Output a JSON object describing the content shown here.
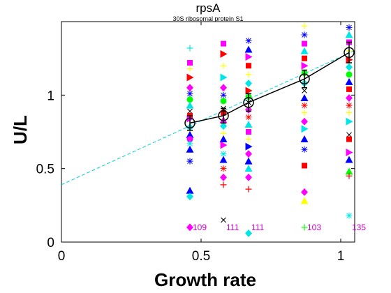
{
  "chart_data": {
    "type": "scatter",
    "title": "rpsA",
    "subtitle": "30S ribosomal protein S1",
    "xlabel": "Growth rate",
    "ylabel": "U/L",
    "xlim": [
      0,
      1.05
    ],
    "ylim": [
      0,
      1.5
    ],
    "xticks": [
      "0",
      "0.5",
      "1"
    ],
    "yticks": [
      "0",
      "0.5",
      "1"
    ],
    "grid": false,
    "fit_line": {
      "intercept": 0.39,
      "slope": 0.87,
      "color": "#00cccc",
      "style": "dashed"
    },
    "mean_series": {
      "x": [
        0.46,
        0.58,
        0.67,
        0.87,
        1.03
      ],
      "y": [
        0.81,
        0.86,
        0.95,
        1.11,
        1.29
      ],
      "err": [
        0.05,
        0.05,
        0.06,
        0.06,
        0.07
      ]
    },
    "sample_counts": {
      "x": [
        0.46,
        0.58,
        0.67,
        0.87,
        1.03
      ],
      "labels": [
        "109",
        "111",
        "111",
        "103",
        "135"
      ],
      "y": 0.1,
      "color": "#cc00cc"
    },
    "scatter_points": [
      {
        "x": 0.46,
        "y": 1.32,
        "m": "plus",
        "c": "#00e5e5"
      },
      {
        "x": 0.46,
        "y": 1.22,
        "m": "square",
        "c": "#ff00ff"
      },
      {
        "x": 0.46,
        "y": 1.18,
        "m": "plus",
        "c": "#ffff00"
      },
      {
        "x": 0.46,
        "y": 1.12,
        "m": "tri-right",
        "c": "#ff0000"
      },
      {
        "x": 0.46,
        "y": 1.05,
        "m": "diamond",
        "c": "#ff00ff"
      },
      {
        "x": 0.46,
        "y": 1.01,
        "m": "star",
        "c": "#0000ff"
      },
      {
        "x": 0.46,
        "y": 0.97,
        "m": "circle",
        "c": "#00ff00"
      },
      {
        "x": 0.46,
        "y": 0.93,
        "m": "tri-up",
        "c": "#00e5e5"
      },
      {
        "x": 0.46,
        "y": 0.89,
        "m": "cross",
        "c": "#000000"
      },
      {
        "x": 0.46,
        "y": 0.86,
        "m": "square",
        "c": "#ff0000"
      },
      {
        "x": 0.46,
        "y": 0.84,
        "m": "tri-right",
        "c": "#ff00ff"
      },
      {
        "x": 0.46,
        "y": 0.78,
        "m": "diamond",
        "c": "#00e5e5"
      },
      {
        "x": 0.46,
        "y": 0.76,
        "m": "plus",
        "c": "#ffff00"
      },
      {
        "x": 0.46,
        "y": 0.73,
        "m": "tri-up",
        "c": "#0000ff"
      },
      {
        "x": 0.46,
        "y": 0.7,
        "m": "circle",
        "c": "#ff00ff"
      },
      {
        "x": 0.46,
        "y": 0.67,
        "m": "star",
        "c": "#00e5e5"
      },
      {
        "x": 0.46,
        "y": 0.63,
        "m": "tri-up",
        "c": "#0000ff"
      },
      {
        "x": 0.46,
        "y": 0.55,
        "m": "star",
        "c": "#0000ff"
      },
      {
        "x": 0.46,
        "y": 0.35,
        "m": "tri-up",
        "c": "#0000ff"
      },
      {
        "x": 0.46,
        "y": 0.31,
        "m": "diamond",
        "c": "#00e5e5"
      },
      {
        "x": 0.46,
        "y": 0.1,
        "m": "diamond",
        "c": "#ff00ff"
      },
      {
        "x": 0.58,
        "y": 1.35,
        "m": "square",
        "c": "#ff00ff"
      },
      {
        "x": 0.58,
        "y": 1.28,
        "m": "tri-right",
        "c": "#ff0000"
      },
      {
        "x": 0.58,
        "y": 1.2,
        "m": "plus",
        "c": "#ffff00"
      },
      {
        "x": 0.58,
        "y": 1.12,
        "m": "tri-right",
        "c": "#00e5e5"
      },
      {
        "x": 0.58,
        "y": 1.05,
        "m": "diamond",
        "c": "#ff00ff"
      },
      {
        "x": 0.58,
        "y": 1.0,
        "m": "star",
        "c": "#0000ff"
      },
      {
        "x": 0.58,
        "y": 0.96,
        "m": "circle",
        "c": "#00ff00"
      },
      {
        "x": 0.58,
        "y": 0.91,
        "m": "cross",
        "c": "#000000"
      },
      {
        "x": 0.58,
        "y": 0.88,
        "m": "square",
        "c": "#ff0000"
      },
      {
        "x": 0.58,
        "y": 0.83,
        "m": "tri-up",
        "c": "#ff00ff"
      },
      {
        "x": 0.58,
        "y": 0.79,
        "m": "diamond",
        "c": "#00e5e5"
      },
      {
        "x": 0.58,
        "y": 0.74,
        "m": "plus",
        "c": "#ffff00"
      },
      {
        "x": 0.58,
        "y": 0.7,
        "m": "tri-up",
        "c": "#0000ff"
      },
      {
        "x": 0.58,
        "y": 0.66,
        "m": "tri-right",
        "c": "#ff00ff"
      },
      {
        "x": 0.58,
        "y": 0.6,
        "m": "star",
        "c": "#00e5e5"
      },
      {
        "x": 0.58,
        "y": 0.56,
        "m": "tri-up",
        "c": "#0000ff"
      },
      {
        "x": 0.58,
        "y": 0.5,
        "m": "star",
        "c": "#ff0000"
      },
      {
        "x": 0.58,
        "y": 0.44,
        "m": "diamond",
        "c": "#ff00ff"
      },
      {
        "x": 0.58,
        "y": 0.39,
        "m": "plus",
        "c": "#ff0000"
      },
      {
        "x": 0.58,
        "y": 0.15,
        "m": "cross",
        "c": "#000000"
      },
      {
        "x": 0.67,
        "y": 1.37,
        "m": "star",
        "c": "#0000ff"
      },
      {
        "x": 0.67,
        "y": 1.31,
        "m": "tri-up",
        "c": "#0000ff"
      },
      {
        "x": 0.67,
        "y": 1.26,
        "m": "tri-right",
        "c": "#ff00ff"
      },
      {
        "x": 0.67,
        "y": 1.2,
        "m": "square",
        "c": "#ff0000"
      },
      {
        "x": 0.67,
        "y": 1.14,
        "m": "plus",
        "c": "#ffff00"
      },
      {
        "x": 0.67,
        "y": 1.08,
        "m": "diamond",
        "c": "#00e5e5"
      },
      {
        "x": 0.67,
        "y": 1.03,
        "m": "tri-right",
        "c": "#ff0000"
      },
      {
        "x": 0.67,
        "y": 0.99,
        "m": "circle",
        "c": "#00ff00"
      },
      {
        "x": 0.67,
        "y": 0.95,
        "m": "cross",
        "c": "#000000"
      },
      {
        "x": 0.67,
        "y": 0.9,
        "m": "diamond",
        "c": "#ff00ff"
      },
      {
        "x": 0.67,
        "y": 0.85,
        "m": "star",
        "c": "#ff0000"
      },
      {
        "x": 0.67,
        "y": 0.8,
        "m": "tri-up",
        "c": "#00e5e5"
      },
      {
        "x": 0.67,
        "y": 0.75,
        "m": "square",
        "c": "#ff00ff"
      },
      {
        "x": 0.67,
        "y": 0.7,
        "m": "plus",
        "c": "#ffff00"
      },
      {
        "x": 0.67,
        "y": 0.65,
        "m": "tri-right",
        "c": "#0000ff"
      },
      {
        "x": 0.67,
        "y": 0.6,
        "m": "diamond",
        "c": "#ff00ff"
      },
      {
        "x": 0.67,
        "y": 0.55,
        "m": "tri-up",
        "c": "#0000ff"
      },
      {
        "x": 0.67,
        "y": 0.5,
        "m": "tri-up",
        "c": "#00e5e5"
      },
      {
        "x": 0.67,
        "y": 0.44,
        "m": "diamond",
        "c": "#ff00ff"
      },
      {
        "x": 0.67,
        "y": 0.36,
        "m": "plus",
        "c": "#ff0000"
      },
      {
        "x": 0.67,
        "y": 0.06,
        "m": "diamond",
        "c": "#00e5e5"
      },
      {
        "x": 0.87,
        "y": 1.47,
        "m": "plus",
        "c": "#ffff00"
      },
      {
        "x": 0.87,
        "y": 1.41,
        "m": "star",
        "c": "#0000ff"
      },
      {
        "x": 0.87,
        "y": 1.35,
        "m": "square",
        "c": "#ff00ff"
      },
      {
        "x": 0.87,
        "y": 1.3,
        "m": "tri-up",
        "c": "#00e5e5"
      },
      {
        "x": 0.87,
        "y": 1.25,
        "m": "square",
        "c": "#ff0000"
      },
      {
        "x": 0.87,
        "y": 1.2,
        "m": "tri-right",
        "c": "#ff00ff"
      },
      {
        "x": 0.87,
        "y": 1.15,
        "m": "circle",
        "c": "#00ff00"
      },
      {
        "x": 0.87,
        "y": 1.08,
        "m": "diamond",
        "c": "#00e5e5"
      },
      {
        "x": 0.87,
        "y": 1.03,
        "m": "cross",
        "c": "#000000"
      },
      {
        "x": 0.87,
        "y": 0.98,
        "m": "tri-up",
        "c": "#0000ff"
      },
      {
        "x": 0.87,
        "y": 0.93,
        "m": "star",
        "c": "#ff0000"
      },
      {
        "x": 0.87,
        "y": 0.88,
        "m": "plus",
        "c": "#ffff00"
      },
      {
        "x": 0.87,
        "y": 0.82,
        "m": "diamond",
        "c": "#ff00ff"
      },
      {
        "x": 0.87,
        "y": 0.77,
        "m": "tri-right",
        "c": "#00e5e5"
      },
      {
        "x": 0.87,
        "y": 0.7,
        "m": "tri-up",
        "c": "#0000ff"
      },
      {
        "x": 0.87,
        "y": 0.63,
        "m": "star",
        "c": "#0000ff"
      },
      {
        "x": 0.87,
        "y": 0.52,
        "m": "square",
        "c": "#ff0000"
      },
      {
        "x": 0.87,
        "y": 0.34,
        "m": "diamond",
        "c": "#ff00ff"
      },
      {
        "x": 0.87,
        "y": 0.28,
        "m": "tri-up",
        "c": "#ffff00"
      },
      {
        "x": 0.87,
        "y": 0.1,
        "m": "plus",
        "c": "#00ff00"
      },
      {
        "x": 1.03,
        "y": 1.46,
        "m": "star",
        "c": "#0000ff"
      },
      {
        "x": 1.03,
        "y": 1.41,
        "m": "tri-up",
        "c": "#00e5e5"
      },
      {
        "x": 1.03,
        "y": 1.36,
        "m": "square",
        "c": "#ff00ff"
      },
      {
        "x": 1.03,
        "y": 1.3,
        "m": "plus",
        "c": "#ffff00"
      },
      {
        "x": 1.03,
        "y": 1.24,
        "m": "tri-right",
        "c": "#ff0000"
      },
      {
        "x": 1.03,
        "y": 1.19,
        "m": "diamond",
        "c": "#00e5e5"
      },
      {
        "x": 1.03,
        "y": 1.14,
        "m": "circle",
        "c": "#00ff00"
      },
      {
        "x": 1.03,
        "y": 1.09,
        "m": "tri-up",
        "c": "#0000ff"
      },
      {
        "x": 1.03,
        "y": 1.04,
        "m": "square",
        "c": "#ff0000"
      },
      {
        "x": 1.03,
        "y": 0.98,
        "m": "diamond",
        "c": "#ff00ff"
      },
      {
        "x": 1.03,
        "y": 0.93,
        "m": "star",
        "c": "#ff0000"
      },
      {
        "x": 1.03,
        "y": 0.88,
        "m": "plus",
        "c": "#ffff00"
      },
      {
        "x": 1.03,
        "y": 0.82,
        "m": "tri-right",
        "c": "#00e5e5"
      },
      {
        "x": 1.03,
        "y": 0.73,
        "m": "cross",
        "c": "#000000"
      },
      {
        "x": 1.03,
        "y": 0.7,
        "m": "square",
        "c": "#ff0000"
      },
      {
        "x": 1.03,
        "y": 0.61,
        "m": "tri-right",
        "c": "#ff00ff"
      },
      {
        "x": 1.03,
        "y": 0.56,
        "m": "tri-up",
        "c": "#0000ff"
      },
      {
        "x": 1.03,
        "y": 0.48,
        "m": "tri-up",
        "c": "#00ff00"
      },
      {
        "x": 1.03,
        "y": 0.45,
        "m": "plus",
        "c": "#ff0000"
      },
      {
        "x": 1.03,
        "y": 0.18,
        "m": "star",
        "c": "#00e5e5"
      }
    ]
  }
}
